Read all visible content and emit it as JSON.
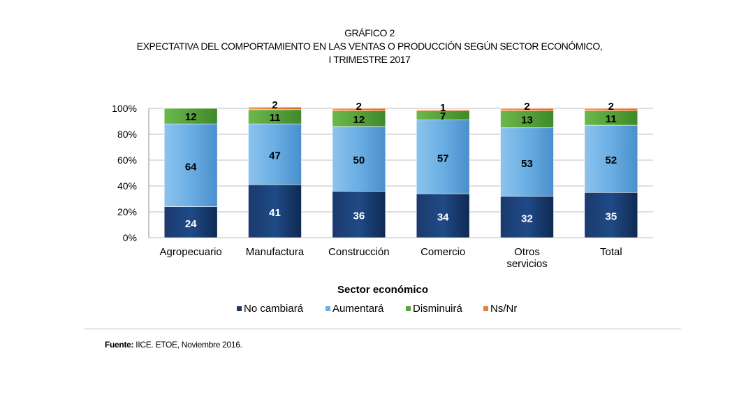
{
  "header": {
    "figure_number": "GRÁFICO 2",
    "title_line1": "EXPECTATIVA DEL COMPORTAMIENTO EN LAS VENTAS O PRODUCCIÓN SEGÚN SECTOR ECONÓMICO,",
    "title_line2": "I TRIMESTRE 2017"
  },
  "source": {
    "label": "Fuente:",
    "text": "IICE. ETOE, Noviembre 2016."
  },
  "chart_data": {
    "type": "bar",
    "stacked": true,
    "categories": [
      [
        "Agropecuario"
      ],
      [
        "Manufactura"
      ],
      [
        "Construcción"
      ],
      [
        "Comercio"
      ],
      [
        "Otros",
        "servicios"
      ],
      [
        "Total"
      ]
    ],
    "xlabel": "Sector económico",
    "ylabel": "",
    "ylim": [
      0,
      100
    ],
    "yticks": [
      "0%",
      "20%",
      "40%",
      "60%",
      "80%",
      "100%"
    ],
    "grid": true,
    "legend_position": "bottom",
    "series": [
      {
        "name": "No cambiará",
        "color": "#1f3864",
        "values": [
          24,
          41,
          36,
          34,
          32,
          35
        ]
      },
      {
        "name": "Aumentará",
        "color": "#6aaee3",
        "values": [
          64,
          47,
          50,
          57,
          53,
          52
        ]
      },
      {
        "name": "Disminuirá",
        "color": "#5ba33f",
        "values": [
          12,
          11,
          12,
          7,
          13,
          11
        ]
      },
      {
        "name": "Ns/Nr",
        "color": "#ed7d31",
        "values": [
          0,
          2,
          2,
          1,
          2,
          2
        ]
      }
    ],
    "data_labels": [
      [
        "24",
        "41",
        "36",
        "34",
        "32",
        "35"
      ],
      [
        "64",
        "47",
        "50",
        "57",
        "53",
        "52"
      ],
      [
        "12",
        "11",
        "12",
        "7",
        "13",
        "11"
      ],
      [
        "",
        "2",
        "2",
        "1",
        "2",
        "2"
      ]
    ]
  }
}
